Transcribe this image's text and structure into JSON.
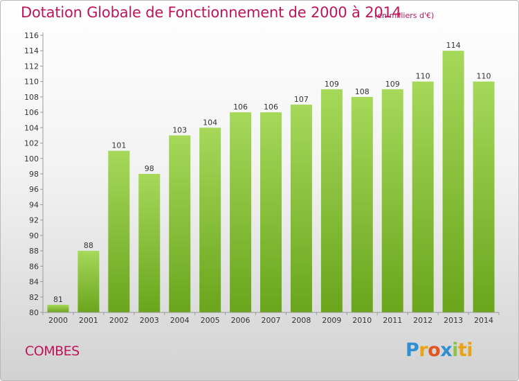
{
  "header": {
    "title": "Dotation Globale de Fonctionnement de 2000 à 2014",
    "unit": "(en milliers d'€)"
  },
  "footer": {
    "town": "COMBES",
    "logo": [
      "P",
      "r",
      "o",
      "x",
      "i",
      "ti"
    ]
  },
  "colors": {
    "title": "#c0145a",
    "bar_light": "#a6d85a",
    "bar_dark": "#6aa51c",
    "axis": "#888888"
  },
  "chart_data": {
    "type": "bar",
    "title": "Dotation Globale de Fonctionnement de 2000 à 2014",
    "subtitle": "(en milliers d'€)",
    "categories": [
      "2000",
      "2001",
      "2002",
      "2003",
      "2004",
      "2005",
      "2006",
      "2007",
      "2008",
      "2009",
      "2010",
      "2011",
      "2012",
      "2013",
      "2014"
    ],
    "values": [
      81,
      88,
      101,
      98,
      103,
      104,
      106,
      106,
      107,
      109,
      108,
      109,
      110,
      114,
      110
    ],
    "ylim": [
      80,
      116
    ],
    "yticks": [
      80,
      82,
      84,
      86,
      88,
      90,
      92,
      94,
      96,
      98,
      100,
      102,
      104,
      106,
      108,
      110,
      112,
      114,
      116
    ],
    "xlabel": "",
    "ylabel": "",
    "grid": false,
    "legend": "none"
  }
}
